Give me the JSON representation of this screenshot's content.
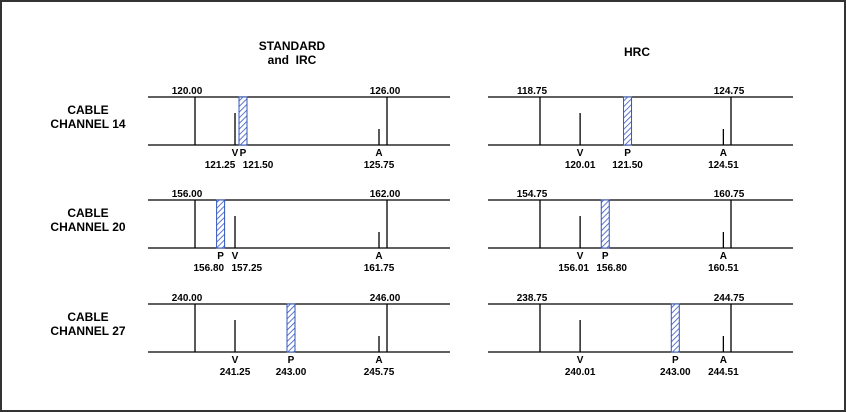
{
  "headers": {
    "standard_line1": "STANDARD",
    "standard_line2": "and  IRC",
    "hrc": "HRC"
  },
  "rows": [
    {
      "label_line1": "CABLE",
      "label_line2": "CHANNEL 14",
      "standard": {
        "edge_left": "120.00",
        "edge_right": "126.00",
        "bounds": [
          120.0,
          126.0
        ],
        "carriers": [
          {
            "letter": "V",
            "value": "121.25",
            "freq": 121.25,
            "kind": "line"
          },
          {
            "letter": "P",
            "value": "121.50",
            "freq": 121.5,
            "kind": "hatch"
          },
          {
            "letter": "A",
            "value": "125.75",
            "freq": 125.75,
            "kind": "line"
          }
        ]
      },
      "hrc": {
        "edge_left": "118.75",
        "edge_right": "124.75",
        "bounds": [
          118.75,
          124.75
        ],
        "carriers": [
          {
            "letter": "V",
            "value": "120.01",
            "freq": 120.01,
            "kind": "line"
          },
          {
            "letter": "P",
            "value": "121.50",
            "freq": 121.5,
            "kind": "hatch"
          },
          {
            "letter": "A",
            "value": "124.51",
            "freq": 124.51,
            "kind": "line"
          }
        ]
      }
    },
    {
      "label_line1": "CABLE",
      "label_line2": "CHANNEL 20",
      "standard": {
        "edge_left": "156.00",
        "edge_right": "162.00",
        "bounds": [
          156.0,
          162.0
        ],
        "carriers": [
          {
            "letter": "P",
            "value": "156.80",
            "freq": 156.8,
            "kind": "hatch"
          },
          {
            "letter": "V",
            "value": "157.25",
            "freq": 157.25,
            "kind": "line"
          },
          {
            "letter": "A",
            "value": "161.75",
            "freq": 161.75,
            "kind": "line"
          }
        ]
      },
      "hrc": {
        "edge_left": "154.75",
        "edge_right": "160.75",
        "bounds": [
          154.75,
          160.75
        ],
        "carriers": [
          {
            "letter": "V",
            "value": "156.01",
            "freq": 156.01,
            "kind": "line"
          },
          {
            "letter": "P",
            "value": "156.80",
            "freq": 156.8,
            "kind": "hatch"
          },
          {
            "letter": "A",
            "value": "160.51",
            "freq": 160.51,
            "kind": "line"
          }
        ]
      }
    },
    {
      "label_line1": "CABLE",
      "label_line2": "CHANNEL  27",
      "standard": {
        "edge_left": "240.00",
        "edge_right": "246.00",
        "bounds": [
          240.0,
          246.0
        ],
        "carriers": [
          {
            "letter": "V",
            "value": "241.25",
            "freq": 241.25,
            "kind": "line"
          },
          {
            "letter": "P",
            "value": "243.00",
            "freq": 243.0,
            "kind": "hatch"
          },
          {
            "letter": "A",
            "value": "245.75",
            "freq": 245.75,
            "kind": "line"
          }
        ]
      },
      "hrc": {
        "edge_left": "238.75",
        "edge_right": "244.75",
        "bounds": [
          238.75,
          244.75
        ],
        "carriers": [
          {
            "letter": "V",
            "value": "240.01",
            "freq": 240.01,
            "kind": "line"
          },
          {
            "letter": "P",
            "value": "243.00",
            "freq": 243.0,
            "kind": "hatch"
          },
          {
            "letter": "A",
            "value": "244.51",
            "freq": 244.51,
            "kind": "line"
          }
        ]
      }
    }
  ],
  "colors": {
    "hatch_stroke": "#3355bb",
    "hatch_fill": "#ffffff",
    "line": "#000000",
    "frame": "#333333"
  }
}
